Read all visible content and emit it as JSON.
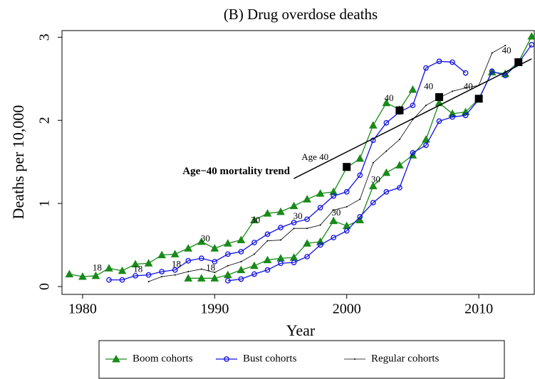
{
  "chart_data": {
    "type": "line",
    "title": "(B) Drug overdose deaths",
    "x_label": "Year",
    "y_label": "Deaths per 10,000",
    "xlim": [
      1978.44,
      2014.2
    ],
    "ylim": [
      -0.094,
      3.08
    ],
    "xticks": [
      1980,
      1990,
      2000,
      2010
    ],
    "yticks": [
      0,
      1,
      2,
      3
    ],
    "series": [
      {
        "name": "Boom cohorts",
        "color": "#1a8a1a",
        "marker": "triangle",
        "lines": [
          {
            "x": [
              1979,
              1980,
              1981,
              1982,
              1983,
              1984,
              1985,
              1986,
              1987,
              1988,
              1989,
              1990,
              1991,
              1992,
              1993,
              1994,
              1995,
              1996,
              1997,
              1998,
              1999,
              2000,
              2001,
              2002,
              2003,
              2004,
              2005
            ],
            "values": [
              0.15,
              0.12,
              0.13,
              0.22,
              0.19,
              0.27,
              0.28,
              0.38,
              0.39,
              0.46,
              0.54,
              0.46,
              0.52,
              0.56,
              0.8,
              0.88,
              0.9,
              0.97,
              1.05,
              1.12,
              1.14,
              1.43,
              1.54,
              1.94,
              2.21,
              2.13,
              2.37
            ]
          },
          {
            "x": [
              1988,
              1989,
              1990,
              1991,
              1992,
              1993,
              1994,
              1995,
              1996,
              1997,
              1998,
              1999,
              2000,
              2001,
              2002,
              2003,
              2004,
              2005,
              2006,
              2007,
              2008,
              2009,
              2010,
              2011,
              2012,
              2013,
              2014
            ],
            "values": [
              0.1,
              0.1,
              0.1,
              0.14,
              0.2,
              0.25,
              0.32,
              0.34,
              0.35,
              0.52,
              0.54,
              0.79,
              0.73,
              0.8,
              1.21,
              1.37,
              1.46,
              1.58,
              1.77,
              2.21,
              2.08,
              2.1,
              2.26,
              2.58,
              2.56,
              2.7,
              3.01
            ]
          }
        ]
      },
      {
        "name": "Bust cohorts",
        "color": "#1010e0",
        "marker": "circle",
        "lines": [
          {
            "x": [
              1982,
              1983,
              1984,
              1985,
              1986,
              1987,
              1988,
              1989,
              1990,
              1991,
              1992,
              1993,
              1994,
              1995,
              1996,
              1997,
              1998,
              1999,
              2000,
              2001,
              2002,
              2003,
              2004,
              2005,
              2006,
              2007,
              2008,
              2009
            ],
            "values": [
              0.08,
              0.08,
              0.13,
              0.14,
              0.18,
              0.2,
              0.31,
              0.34,
              0.3,
              0.39,
              0.42,
              0.53,
              0.63,
              0.71,
              0.77,
              0.81,
              0.95,
              1.09,
              1.14,
              1.34,
              1.76,
              1.97,
              2.1,
              2.18,
              2.63,
              2.71,
              2.7,
              2.57
            ]
          },
          {
            "x": [
              1991,
              1992,
              1993,
              1994,
              1995,
              1996,
              1997,
              1998,
              1999,
              2000,
              2001,
              2002,
              2003,
              2004,
              2005,
              2006,
              2007,
              2008,
              2009,
              2010,
              2011,
              2012,
              2013,
              2014
            ],
            "values": [
              0.07,
              0.09,
              0.15,
              0.2,
              0.28,
              0.29,
              0.36,
              0.5,
              0.59,
              0.67,
              0.84,
              1.01,
              1.14,
              1.19,
              1.61,
              1.7,
              1.99,
              2.04,
              2.06,
              2.25,
              2.59,
              2.54,
              2.69,
              2.91
            ]
          }
        ]
      },
      {
        "name": "Regular cohorts",
        "color": "#000000",
        "marker": "dot",
        "lines": [
          {
            "x": [
              1985,
              1986,
              1987,
              1988,
              1989,
              1990,
              1991,
              1992,
              1993,
              1994,
              1995,
              1996,
              1997,
              1998,
              1999,
              2000,
              2001,
              2002,
              2003,
              2004,
              2005,
              2006,
              2007,
              2008,
              2009,
              2010,
              2011,
              2012
            ],
            "values": [
              0.06,
              0.12,
              0.14,
              0.18,
              0.21,
              0.17,
              0.25,
              0.3,
              0.39,
              0.55,
              0.56,
              0.7,
              0.7,
              0.74,
              0.92,
              0.96,
              1.05,
              1.49,
              1.63,
              1.77,
              2.01,
              2.18,
              2.27,
              2.35,
              2.39,
              2.42,
              2.81,
              2.9
            ]
          }
        ]
      }
    ],
    "trend": {
      "x": [
        1996,
        2014
      ],
      "values": [
        1.3,
        2.74
      ]
    },
    "age40_points": {
      "x": [
        2000,
        2004,
        2007,
        2010,
        2013
      ],
      "values": [
        1.44,
        2.12,
        2.28,
        2.26,
        2.7
      ]
    },
    "annotations": [
      {
        "text": "Age−40 mortality trend",
        "x": 1995.7,
        "y": 1.38,
        "anchor": "end",
        "bold": true
      },
      {
        "text": "Age 40",
        "x": 1997.6,
        "y": 1.55,
        "anchor": "middle"
      },
      {
        "text": "18",
        "x": 1981.1,
        "y": 0.22,
        "anchor": "middle"
      },
      {
        "text": "18",
        "x": 1984.2,
        "y": 0.2,
        "anchor": "middle"
      },
      {
        "text": "18",
        "x": 1987.1,
        "y": 0.26,
        "anchor": "middle"
      },
      {
        "text": "18",
        "x": 1989.7,
        "y": 0.22,
        "anchor": "middle"
      },
      {
        "text": "30",
        "x": 1989.3,
        "y": 0.57,
        "anchor": "middle"
      },
      {
        "text": "30",
        "x": 1993.1,
        "y": 0.79,
        "anchor": "middle"
      },
      {
        "text": "30",
        "x": 1996.3,
        "y": 0.84,
        "anchor": "middle"
      },
      {
        "text": "30",
        "x": 1999.2,
        "y": 0.88,
        "anchor": "middle"
      },
      {
        "text": "30",
        "x": 2002.2,
        "y": 1.28,
        "anchor": "middle"
      },
      {
        "text": "40",
        "x": 2003.2,
        "y": 2.26,
        "anchor": "middle"
      },
      {
        "text": "40",
        "x": 2006.2,
        "y": 2.4,
        "anchor": "middle"
      },
      {
        "text": "40",
        "x": 2009.2,
        "y": 2.4,
        "anchor": "middle"
      },
      {
        "text": "40",
        "x": 2012.1,
        "y": 2.83,
        "anchor": "middle"
      }
    ]
  }
}
